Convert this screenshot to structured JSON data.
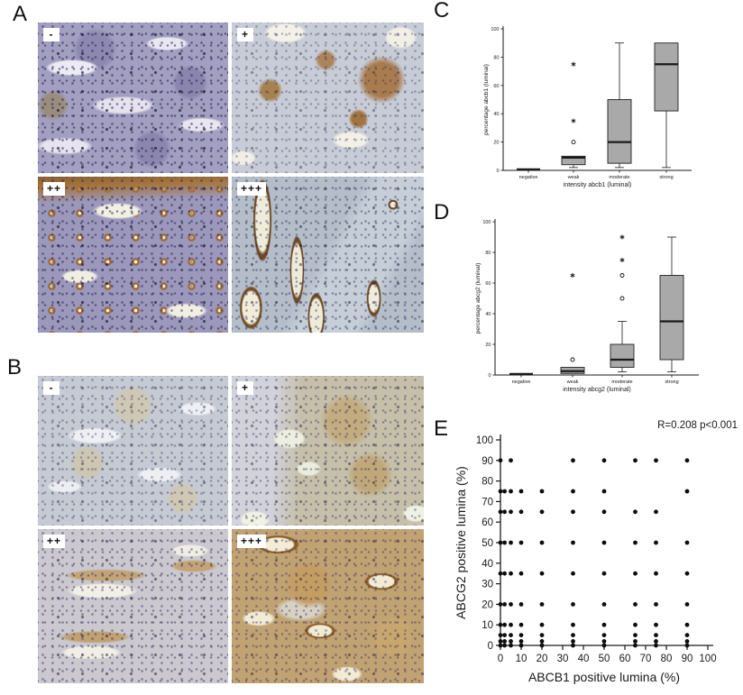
{
  "panels": {
    "a": {
      "label": "A",
      "images": [
        {
          "label": "-"
        },
        {
          "label": "+"
        },
        {
          "label": "++"
        },
        {
          "label": "+++"
        }
      ]
    },
    "b": {
      "label": "B",
      "images": [
        {
          "label": "-"
        },
        {
          "label": "+"
        },
        {
          "label": "++"
        },
        {
          "label": "+++"
        }
      ]
    },
    "c": {
      "label": "C"
    },
    "d": {
      "label": "D"
    },
    "e": {
      "label": "E"
    }
  },
  "chart_data": [
    {
      "id": "c",
      "type": "boxplot",
      "xlabel": "intensity abcb1 (luminal)",
      "ylabel": "percentage abcb1 (luminal)",
      "ylim": [
        0,
        100
      ],
      "yticks": [
        0,
        20,
        40,
        60,
        80,
        100
      ],
      "categories": [
        "negative",
        "weak",
        "moderate",
        "strong"
      ],
      "boxes": [
        {
          "category": "negative",
          "q1": 0,
          "median": 0,
          "q3": 0,
          "whisker_low": 0,
          "whisker_high": 0,
          "outliers": [],
          "extremes": []
        },
        {
          "category": "weak",
          "q1": 4,
          "median": 9,
          "q3": 10,
          "whisker_low": 2,
          "whisker_high": 10,
          "outliers": [
            20
          ],
          "extremes": [
            35,
            75
          ]
        },
        {
          "category": "moderate",
          "q1": 5,
          "median": 20,
          "q3": 50,
          "whisker_low": 2,
          "whisker_high": 90,
          "outliers": [],
          "extremes": []
        },
        {
          "category": "strong",
          "q1": 42,
          "median": 75,
          "q3": 90,
          "whisker_low": 2,
          "whisker_high": 90,
          "outliers": [],
          "extremes": []
        }
      ]
    },
    {
      "id": "d",
      "type": "boxplot",
      "xlabel": "intensity abcg2 (luminal)",
      "ylabel": "percentage abcg2 (luminal)",
      "ylim": [
        0,
        100
      ],
      "yticks": [
        0,
        20,
        40,
        60,
        80,
        100
      ],
      "categories": [
        "negative",
        "weak",
        "moderate",
        "strong"
      ],
      "boxes": [
        {
          "category": "negative",
          "q1": 0,
          "median": 0,
          "q3": 0,
          "whisker_low": 0,
          "whisker_high": 0,
          "outliers": [],
          "extremes": []
        },
        {
          "category": "weak",
          "q1": 1,
          "median": 2.5,
          "q3": 5,
          "whisker_low": 1,
          "whisker_high": 5,
          "outliers": [
            10
          ],
          "extremes": [
            65
          ]
        },
        {
          "category": "moderate",
          "q1": 5,
          "median": 10,
          "q3": 20,
          "whisker_low": 2,
          "whisker_high": 35,
          "outliers": [
            50,
            65
          ],
          "extremes": [
            75,
            90
          ]
        },
        {
          "category": "strong",
          "q1": 10,
          "median": 35,
          "q3": 65,
          "whisker_low": 2,
          "whisker_high": 90,
          "outliers": [],
          "extremes": []
        }
      ]
    },
    {
      "id": "e",
      "type": "scatter",
      "annotation": "R=0.208 p<0.001",
      "xlabel": "ABCB1 positive lumina (%)",
      "ylabel": "ABCG2 positive lumina (%)",
      "xlim": [
        0,
        100
      ],
      "ylim": [
        0,
        100
      ],
      "xticks": [
        0,
        10,
        20,
        30,
        40,
        50,
        60,
        70,
        80,
        90,
        100
      ],
      "yticks": [
        0,
        10,
        20,
        30,
        40,
        50,
        60,
        70,
        80,
        90,
        100
      ],
      "rows": [
        {
          "y": 0,
          "xs": [
            0,
            2,
            5,
            10,
            20,
            35,
            50,
            65,
            75,
            90
          ]
        },
        {
          "y": 2,
          "xs": [
            0,
            2,
            5,
            10,
            20,
            35,
            50,
            65,
            75,
            90
          ]
        },
        {
          "y": 5,
          "xs": [
            0,
            2,
            5,
            10,
            20,
            35,
            50,
            65,
            75,
            90
          ]
        },
        {
          "y": 10,
          "xs": [
            0,
            2,
            5,
            10,
            20,
            35,
            50,
            65,
            75,
            90
          ]
        },
        {
          "y": 20,
          "xs": [
            0,
            2,
            5,
            10,
            20,
            35,
            50,
            65,
            75,
            90
          ]
        },
        {
          "y": 35,
          "xs": [
            0,
            2,
            5,
            10,
            20,
            35,
            50,
            65,
            75,
            90
          ]
        },
        {
          "y": 50,
          "xs": [
            0,
            2,
            5,
            10,
            20,
            35,
            50,
            65,
            75,
            90
          ]
        },
        {
          "y": 65,
          "xs": [
            0,
            2,
            5,
            10,
            20,
            35,
            50,
            65,
            75
          ]
        },
        {
          "y": 75,
          "xs": [
            0,
            2,
            5,
            10,
            20,
            35,
            50,
            90
          ]
        },
        {
          "y": 90,
          "xs": [
            0,
            5,
            35,
            50,
            65,
            75,
            90
          ]
        }
      ]
    }
  ]
}
